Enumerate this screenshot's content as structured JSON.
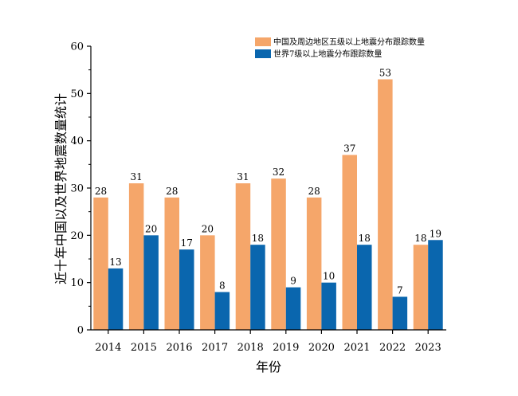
{
  "chart_data": {
    "type": "bar",
    "title": "",
    "xlabel": "年份",
    "ylabel": "近十年中国以及世界地震数量统计",
    "categories": [
      "2014",
      "2015",
      "2016",
      "2017",
      "2018",
      "2019",
      "2020",
      "2021",
      "2022",
      "2023"
    ],
    "series": [
      {
        "name": "中国及周边地区五级以上地震分布跟踪数量",
        "color": "#F5A66A",
        "values": [
          28,
          31,
          28,
          20,
          31,
          32,
          28,
          37,
          53,
          18
        ]
      },
      {
        "name": "世界7级以上地震分布跟踪数量",
        "color": "#0A66AE",
        "values": [
          13,
          20,
          17,
          8,
          18,
          9,
          10,
          18,
          7,
          19
        ]
      }
    ],
    "ylim": [
      0,
      60
    ],
    "yticks": [
      0,
      10,
      20,
      30,
      40,
      50,
      60
    ],
    "legend_position": "top-right",
    "grid": false
  }
}
